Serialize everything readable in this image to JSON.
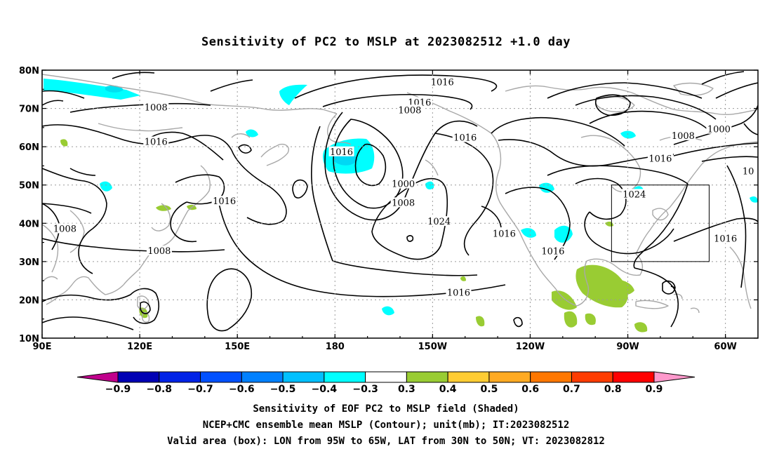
{
  "title": "Sensitivity of PC2 to MSLP at 2023082512 +1.0 day",
  "map": {
    "lon_range": [
      90,
      310
    ],
    "lat_range": [
      10,
      80
    ],
    "lon_ticks": [
      {
        "value": 90,
        "label": "90E"
      },
      {
        "value": 120,
        "label": "120E"
      },
      {
        "value": 150,
        "label": "150E"
      },
      {
        "value": 180,
        "label": "180"
      },
      {
        "value": 210,
        "label": "150W"
      },
      {
        "value": 240,
        "label": "120W"
      },
      {
        "value": 270,
        "label": "90W"
      },
      {
        "value": 300,
        "label": "60W"
      }
    ],
    "lat_ticks": [
      {
        "value": 10,
        "label": "10N"
      },
      {
        "value": 20,
        "label": "20N"
      },
      {
        "value": 30,
        "label": "30N"
      },
      {
        "value": 40,
        "label": "40N"
      },
      {
        "value": 50,
        "label": "50N"
      },
      {
        "value": 60,
        "label": "60N"
      },
      {
        "value": 70,
        "label": "70N"
      },
      {
        "value": 80,
        "label": "80N"
      }
    ],
    "gridlines": true,
    "valid_box": {
      "lon_min": 265,
      "lon_max": 295,
      "lat_min": 30,
      "lat_max": 50
    },
    "contour_labels": [
      {
        "text": "1016",
        "lon": 213,
        "lat": 76.8
      },
      {
        "text": "1016",
        "lon": 206,
        "lat": 71.5
      },
      {
        "text": "1008",
        "lon": 203,
        "lat": 69.5
      },
      {
        "text": "1008",
        "lon": 125,
        "lat": 70.2
      },
      {
        "text": "1016",
        "lon": 125,
        "lat": 61.2
      },
      {
        "text": "1016",
        "lon": 182,
        "lat": 58.6
      },
      {
        "text": "1016",
        "lon": 220,
        "lat": 62.3
      },
      {
        "text": "1008",
        "lon": 287,
        "lat": 62.8
      },
      {
        "text": "1000",
        "lon": 298,
        "lat": 64.5
      },
      {
        "text": "1016",
        "lon": 280,
        "lat": 56.8
      },
      {
        "text": "1000",
        "lon": 201,
        "lat": 50.2
      },
      {
        "text": "1008",
        "lon": 201,
        "lat": 45.3
      },
      {
        "text": "1016",
        "lon": 146,
        "lat": 45.7
      },
      {
        "text": "1024",
        "lon": 212,
        "lat": 40.4
      },
      {
        "text": "1024",
        "lon": 272,
        "lat": 47.5
      },
      {
        "text": "1016",
        "lon": 232,
        "lat": 37.2
      },
      {
        "text": "1016",
        "lon": 247,
        "lat": 32.6
      },
      {
        "text": "1016",
        "lon": 300,
        "lat": 35.9
      },
      {
        "text": "1008",
        "lon": 97,
        "lat": 38.5
      },
      {
        "text": "1008",
        "lon": 126,
        "lat": 32.7
      },
      {
        "text": "1016",
        "lon": 218,
        "lat": 21.8
      },
      {
        "text": "10",
        "lon": 307,
        "lat": 53.5
      }
    ],
    "colors": {
      "contour": "#000000",
      "coastline": "#a8a8a8",
      "grid": "#9a9a9a",
      "box": "#000000"
    }
  },
  "colorbar": {
    "colors": [
      "#c0008c",
      "#0000b4",
      "#0022e6",
      "#0050ff",
      "#0080ff",
      "#00c0ff",
      "#00ffff",
      "#ffffff",
      "#99cc33",
      "#ffcc33",
      "#ffaa22",
      "#ff7700",
      "#ff3c00",
      "#ff0000",
      "#ff99cc"
    ],
    "labels": [
      "−0.9",
      "−0.8",
      "−0.7",
      "−0.6",
      "−0.5",
      "−0.4",
      "−0.3",
      "0.3",
      "0.4",
      "0.5",
      "0.6",
      "0.7",
      "0.8",
      "0.9"
    ]
  },
  "captions": [
    "Sensitivity of EOF PC2 to MSLP field (Shaded)",
    "NCEP+CMC ensemble mean MSLP (Contour); unit(mb); IT:2023082512",
    "Valid area (box): LON from 95W to 65W, LAT from 30N to 50N; VT: 2023082812"
  ]
}
